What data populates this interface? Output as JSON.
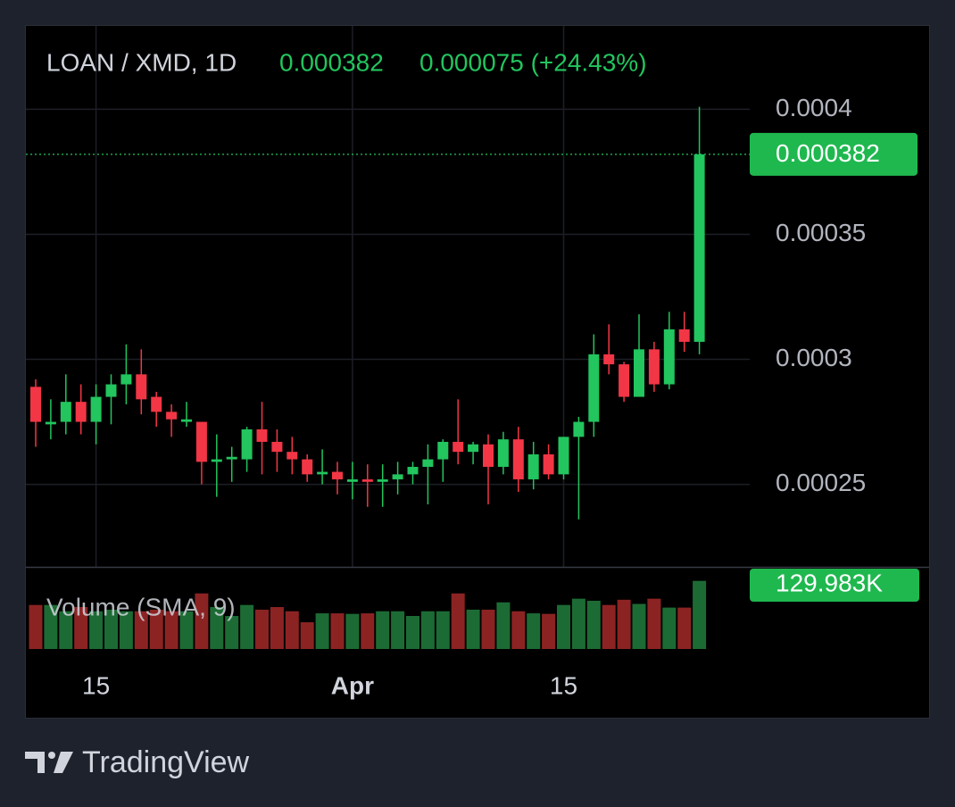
{
  "chart_data": {
    "type": "candlestick",
    "symbol": "LOAN / XMD, 1D",
    "change_text": "0.000075 (+24.43%)",
    "last_price": 0.000382,
    "categories": [
      null,
      null,
      null,
      null,
      "15",
      null,
      null,
      null,
      null,
      null,
      null,
      null,
      null,
      null,
      null,
      null,
      null,
      null,
      null,
      null,
      null,
      "Apr",
      null,
      null,
      null,
      null,
      null,
      null,
      null,
      null,
      null,
      null,
      null,
      null,
      null,
      "15",
      null,
      null,
      null,
      null,
      null,
      null,
      null,
      null,
      null
    ],
    "open": [
      0.000289,
      0.000274,
      0.000275,
      0.000283,
      0.000275,
      0.000285,
      0.00029,
      0.000294,
      0.000285,
      0.000279,
      0.000275,
      0.000275,
      0.000259,
      0.00026,
      0.00026,
      0.000272,
      0.000267,
      0.000263,
      0.00026,
      0.000254,
      0.000255,
      0.000251,
      0.000252,
      0.000251,
      0.000252,
      0.000254,
      0.000257,
      0.00026,
      0.000267,
      0.000263,
      0.000266,
      0.000257,
      0.000268,
      0.000252,
      0.000262,
      0.000254,
      0.000269,
      0.000275,
      0.000302,
      0.000298,
      0.000285,
      0.000304,
      0.00029,
      0.000312,
      0.000307
    ],
    "high": [
      0.000292,
      0.000284,
      0.000294,
      0.00029,
      0.00029,
      0.000294,
      0.000306,
      0.000304,
      0.000287,
      0.000282,
      0.000283,
      0.000275,
      0.00027,
      0.000265,
      0.000273,
      0.000283,
      0.000272,
      0.000269,
      0.000262,
      0.000264,
      0.000259,
      0.000259,
      0.000258,
      0.000258,
      0.000259,
      0.000259,
      0.000266,
      0.000268,
      0.000284,
      0.000267,
      0.00027,
      0.000271,
      0.000273,
      0.000267,
      0.000266,
      0.000269,
      0.000277,
      0.00031,
      0.000314,
      0.000299,
      0.000318,
      0.000307,
      0.000319,
      0.000319,
      0.000401
    ],
    "low": [
      0.000265,
      0.000268,
      0.00027,
      0.00027,
      0.000266,
      0.000274,
      0.000282,
      0.000278,
      0.000273,
      0.000269,
      0.000273,
      0.00025,
      0.000245,
      0.000251,
      0.000255,
      0.000254,
      0.000255,
      0.000254,
      0.000251,
      0.00025,
      0.000246,
      0.000244,
      0.000241,
      0.000241,
      0.000246,
      0.00025,
      0.000242,
      0.000251,
      0.000258,
      0.000258,
      0.000242,
      0.000254,
      0.000247,
      0.000248,
      0.000252,
      0.000252,
      0.000236,
      0.000269,
      0.000294,
      0.000283,
      0.000285,
      0.000287,
      0.000288,
      0.000303,
      0.000302
    ],
    "close": [
      0.000275,
      0.000275,
      0.000283,
      0.000275,
      0.000285,
      0.00029,
      0.000294,
      0.000284,
      0.000279,
      0.000276,
      0.000276,
      0.000259,
      0.00026,
      0.000261,
      0.000272,
      0.000267,
      0.000263,
      0.00026,
      0.000254,
      0.000255,
      0.000252,
      0.000252,
      0.000251,
      0.000252,
      0.000254,
      0.000257,
      0.00026,
      0.000267,
      0.000263,
      0.000266,
      0.000257,
      0.000268,
      0.000252,
      0.000262,
      0.000254,
      0.000269,
      0.000275,
      0.000302,
      0.000298,
      0.000285,
      0.000304,
      0.00029,
      0.000312,
      0.000307,
      0.000382
    ],
    "up_color": "#22c55e",
    "down_color": "#f23645",
    "ylim": [
      0.000217,
      0.000433
    ],
    "yticks": [
      0.00025,
      0.0003,
      0.00035,
      0.0004
    ],
    "grid": true,
    "volume": {
      "name": "Volume (SMA, 9)",
      "values": [
        84000,
        84000,
        72000,
        80000,
        72000,
        75000,
        72000,
        72000,
        75000,
        72000,
        72000,
        106000,
        80000,
        63000,
        84000,
        75000,
        80000,
        72000,
        51000,
        68000,
        68000,
        67000,
        68000,
        72000,
        72000,
        63000,
        72000,
        72000,
        106000,
        75000,
        75000,
        89000,
        72000,
        68000,
        67000,
        84000,
        96000,
        92000,
        84000,
        94000,
        86000,
        96000,
        79000,
        79000,
        129983
      ],
      "value_labels": [
        null,
        null,
        null,
        null,
        null,
        null,
        null,
        null,
        null,
        null,
        null,
        null,
        null,
        null,
        null,
        null,
        null,
        null,
        null,
        null,
        null,
        null,
        null,
        null,
        null,
        null,
        null,
        null,
        null,
        null,
        null,
        null,
        null,
        null,
        null,
        null,
        null,
        null,
        null,
        null,
        null,
        null,
        null,
        null,
        "129.983K"
      ],
      "ylim": [
        0,
        155000
      ],
      "up_color": "#1c6b34",
      "down_color": "#8c2323"
    }
  },
  "brand": "TradingView"
}
